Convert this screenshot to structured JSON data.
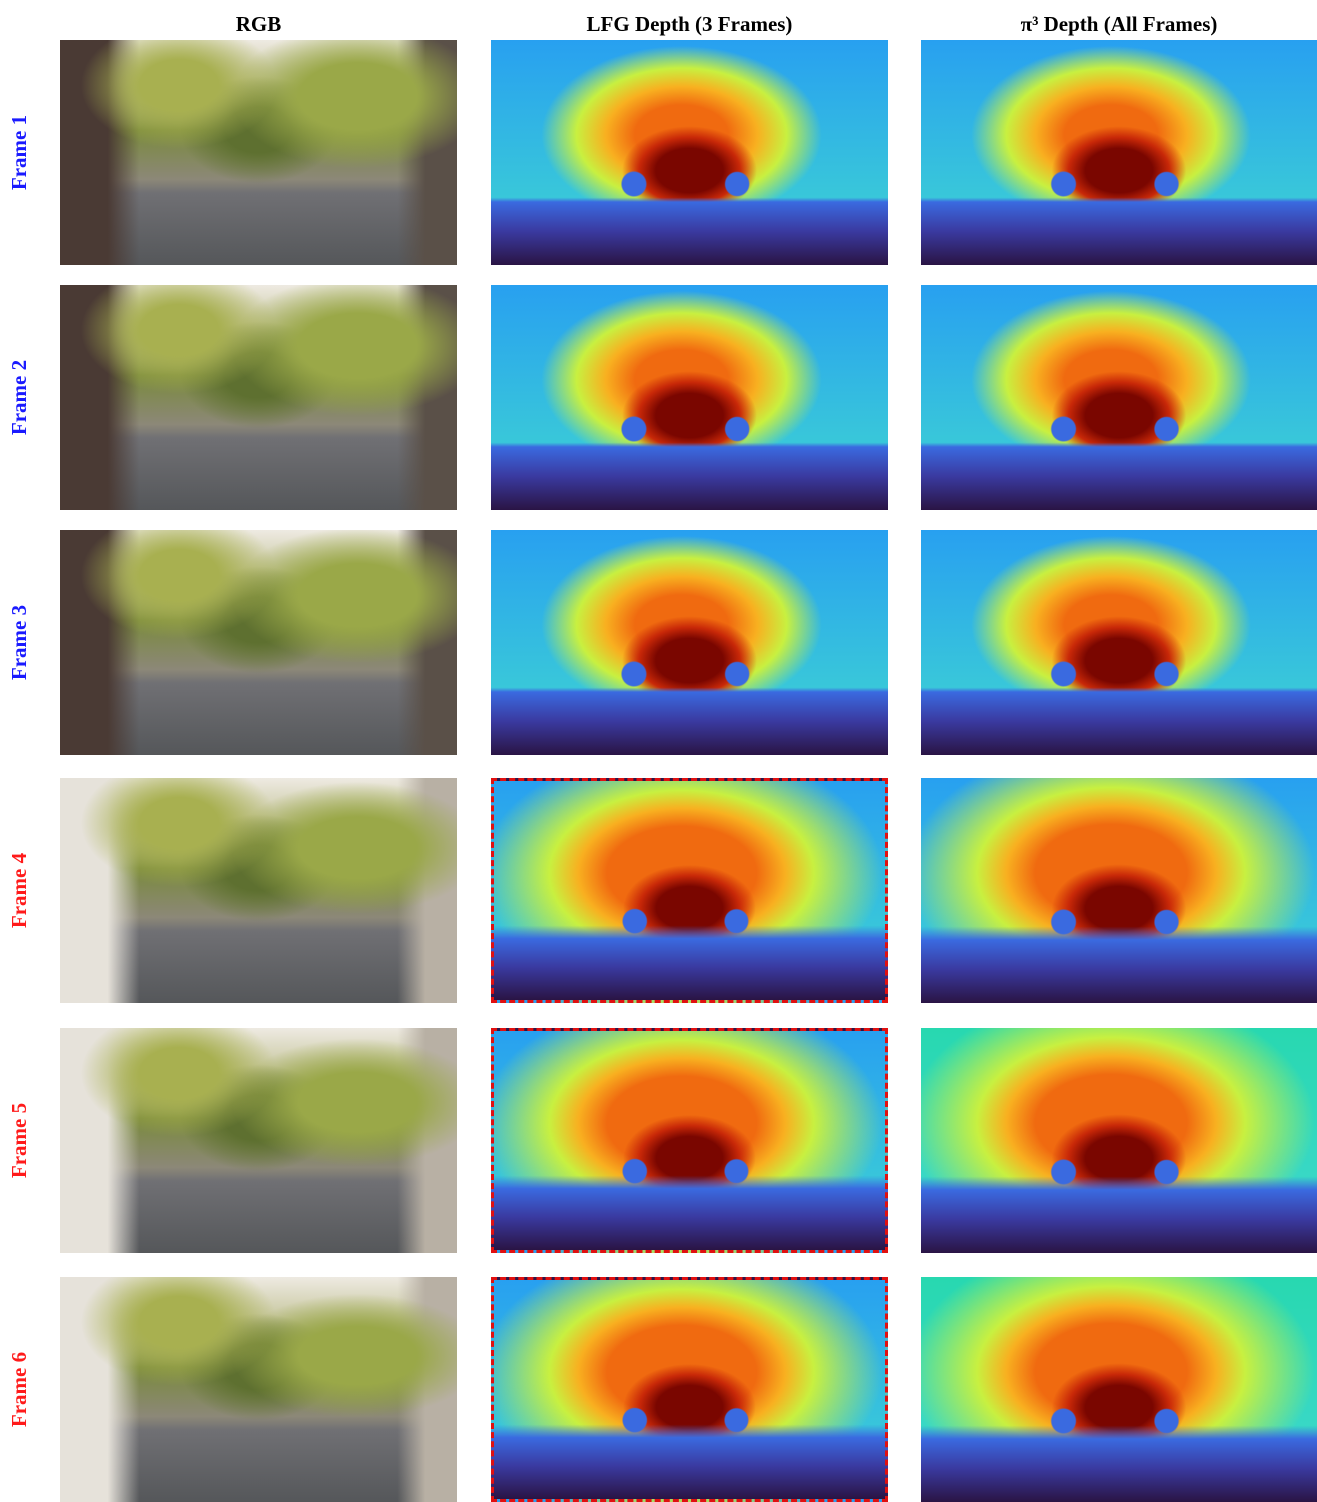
{
  "columns": [
    "RGB",
    "LFG Depth (3 Frames)",
    "π³ Depth (All Frames)"
  ],
  "rows": [
    {
      "label": "Frame 1",
      "color": "#1a1aff",
      "highlight": false
    },
    {
      "label": "Frame 2",
      "color": "#1a1aff",
      "highlight": false
    },
    {
      "label": "Frame 3",
      "color": "#1a1aff",
      "highlight": false
    },
    {
      "label": "Frame 4",
      "color": "#ff1a1a",
      "highlight": true
    },
    {
      "label": "Frame 5",
      "color": "#ff1a1a",
      "highlight": true
    },
    {
      "label": "Frame 6",
      "color": "#ff1a1a",
      "highlight": true
    }
  ]
}
